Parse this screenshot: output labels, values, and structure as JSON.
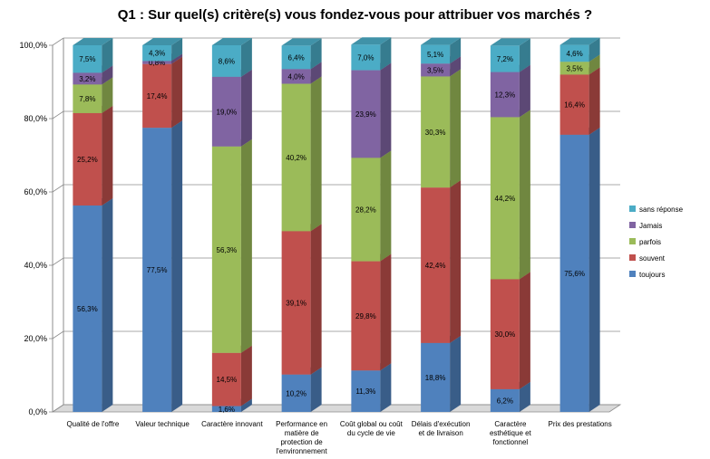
{
  "chart_data": {
    "type": "bar",
    "stacked": true,
    "percent": true,
    "title": "Q1 : Sur quel(s) critère(s) vous fondez-vous pour attribuer vos marchés ?",
    "xlabel": "",
    "ylabel": "",
    "ylim": [
      0,
      100
    ],
    "y_ticks": [
      "0,0%",
      "20,0%",
      "40,0%",
      "60,0%",
      "80,0%",
      "100,0%"
    ],
    "legend_position": "right",
    "categories": [
      "Qualité de l'offre",
      "Valeur technique",
      "Caractère innovant",
      "Performance en matière de protection de l'environnement",
      "Coût global ou coût du cycle de vie",
      "Délais d'exécution et de livraison",
      "Caractère esthétique et fonctionnel",
      "Prix des prestations"
    ],
    "category_lines": [
      [
        "Qualité de l'offre"
      ],
      [
        "Valeur technique"
      ],
      [
        "Caractère innovant"
      ],
      [
        "Performance en",
        "matière de",
        "protection de",
        "l'environnement"
      ],
      [
        "Coût global ou coût",
        "du cycle de vie"
      ],
      [
        "Délais d'exécution",
        "et de livraison"
      ],
      [
        "Caractère",
        "esthétique et",
        "fonctionnel"
      ],
      [
        "Prix des prestations"
      ]
    ],
    "series": [
      {
        "name": "toujours",
        "color": "#4F81BD",
        "values": [
          56.3,
          77.5,
          1.6,
          10.2,
          11.3,
          18.8,
          6.2,
          75.6
        ],
        "labels": [
          "56,3%",
          "77,5%",
          "1,6%",
          "10,2%",
          "11,3%",
          "18,8%",
          "6,2%",
          "75,6%"
        ]
      },
      {
        "name": "souvent",
        "color": "#C0504D",
        "values": [
          25.2,
          17.4,
          14.5,
          39.1,
          29.8,
          42.4,
          30.0,
          16.4
        ],
        "labels": [
          "25,2%",
          "17,4%",
          "14,5%",
          "39,1%",
          "29,8%",
          "42,4%",
          "30,0%",
          "16,4%"
        ]
      },
      {
        "name": "parfois",
        "color": "#9BBB59",
        "values": [
          7.8,
          0.0,
          56.3,
          40.2,
          28.2,
          30.3,
          44.2,
          3.5
        ],
        "labels": [
          "7,8%",
          "",
          "56,3%",
          "40,2%",
          "28,2%",
          "30,3%",
          "44,2%",
          "3,5%"
        ]
      },
      {
        "name": "Jamais",
        "color": "#8064A2",
        "values": [
          3.2,
          0.8,
          19.0,
          4.0,
          23.9,
          3.5,
          12.3,
          0.0
        ],
        "labels": [
          "3,2%",
          "0,8%",
          "19,0%",
          "4,0%",
          "23,9%",
          "3,5%",
          "12,3%",
          ""
        ]
      },
      {
        "name": "sans réponse",
        "color": "#4BACC6",
        "values": [
          7.5,
          4.3,
          8.6,
          6.4,
          7.0,
          5.1,
          7.2,
          4.6
        ],
        "labels": [
          "7,5%",
          "4,3%",
          "8,6%",
          "6,4%",
          "7,0%",
          "5,1%",
          "7,2%",
          "4,6%"
        ]
      }
    ],
    "legend_order": [
      "sans réponse",
      "Jamais",
      "parfois",
      "souvent",
      "toujours"
    ]
  }
}
